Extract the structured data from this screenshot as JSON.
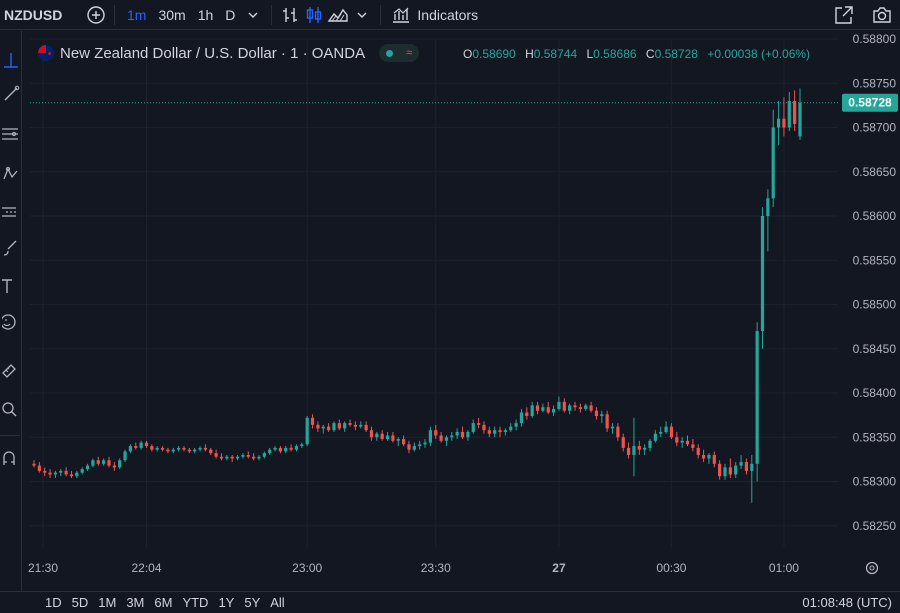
{
  "toolbar": {
    "symbol": "NZDUSD",
    "intervals": [
      "1m",
      "30m",
      "1h",
      "D"
    ],
    "active_interval": "1m",
    "indicators_label": "Indicators"
  },
  "legend": {
    "title": "New Zealand Dollar / U.S. Dollar · 1 · OANDA",
    "o_label": "O",
    "o": "0.58690",
    "h_label": "H",
    "h": "0.58744",
    "l_label": "L",
    "l": "0.58686",
    "c_label": "C",
    "c": "0.58728",
    "change": "+0.00038 (+0.06%)"
  },
  "ranges": [
    "1D",
    "5D",
    "1M",
    "3M",
    "6M",
    "YTD",
    "1Y",
    "5Y",
    "All"
  ],
  "clock": "01:08:48 (UTC)",
  "colors": {
    "up": "#26a69a",
    "down": "#ef5350",
    "background": "#131722",
    "grid": "#1e222d"
  },
  "chart_data": {
    "type": "candlestick",
    "x_tick_labels": [
      "21:30",
      "22:04",
      "23:00",
      "23:30",
      "27",
      "00:30",
      "01:00"
    ],
    "y_tick_labels": [
      "0.58800",
      "0.58750",
      "0.58700",
      "0.58650",
      "0.58600",
      "0.58550",
      "0.58500",
      "0.58450",
      "0.58400",
      "0.58350",
      "0.58300",
      "0.58250"
    ],
    "ylim": [
      0.58226,
      0.588
    ],
    "last_price": 0.58728,
    "last_price_label": "0.58728",
    "candles": [
      [
        0.5832,
        0.58324,
        0.58316,
        0.58318
      ],
      [
        0.58318,
        0.58322,
        0.5831,
        0.58312
      ],
      [
        0.58312,
        0.58316,
        0.58306,
        0.5831
      ],
      [
        0.5831,
        0.58314,
        0.58304,
        0.58308
      ],
      [
        0.58308,
        0.58312,
        0.58304,
        0.5831
      ],
      [
        0.5831,
        0.58314,
        0.58306,
        0.58312
      ],
      [
        0.58312,
        0.58316,
        0.58306,
        0.58308
      ],
      [
        0.58308,
        0.58312,
        0.58304,
        0.58306
      ],
      [
        0.58306,
        0.58312,
        0.58304,
        0.5831
      ],
      [
        0.5831,
        0.58316,
        0.58308,
        0.58314
      ],
      [
        0.58314,
        0.5832,
        0.58312,
        0.58318
      ],
      [
        0.58318,
        0.58326,
        0.58316,
        0.58324
      ],
      [
        0.58324,
        0.58328,
        0.58318,
        0.5832
      ],
      [
        0.5832,
        0.58326,
        0.58318,
        0.58324
      ],
      [
        0.58324,
        0.58328,
        0.58316,
        0.58318
      ],
      [
        0.58318,
        0.58322,
        0.58312,
        0.58316
      ],
      [
        0.58316,
        0.58326,
        0.58314,
        0.58324
      ],
      [
        0.58324,
        0.58336,
        0.58322,
        0.58334
      ],
      [
        0.58334,
        0.58342,
        0.58332,
        0.5834
      ],
      [
        0.5834,
        0.58344,
        0.58336,
        0.58338
      ],
      [
        0.58338,
        0.58346,
        0.58336,
        0.58344
      ],
      [
        0.58344,
        0.58346,
        0.58338,
        0.5834
      ],
      [
        0.5834,
        0.58342,
        0.58334,
        0.58336
      ],
      [
        0.58336,
        0.5834,
        0.58334,
        0.58338
      ],
      [
        0.58338,
        0.5834,
        0.58334,
        0.58336
      ],
      [
        0.58336,
        0.58338,
        0.58332,
        0.58334
      ],
      [
        0.58334,
        0.58338,
        0.58332,
        0.58336
      ],
      [
        0.58336,
        0.5834,
        0.58334,
        0.58338
      ],
      [
        0.58338,
        0.5834,
        0.58334,
        0.58336
      ],
      [
        0.58336,
        0.58338,
        0.58332,
        0.58334
      ],
      [
        0.58334,
        0.58338,
        0.58332,
        0.58336
      ],
      [
        0.58336,
        0.5834,
        0.58334,
        0.58338
      ],
      [
        0.58338,
        0.58342,
        0.58334,
        0.58336
      ],
      [
        0.58336,
        0.58338,
        0.5833,
        0.58332
      ],
      [
        0.58332,
        0.58336,
        0.58326,
        0.58328
      ],
      [
        0.58328,
        0.58332,
        0.58324,
        0.58326
      ],
      [
        0.58326,
        0.5833,
        0.58324,
        0.58328
      ],
      [
        0.58328,
        0.5833,
        0.58322,
        0.58326
      ],
      [
        0.58326,
        0.5833,
        0.58324,
        0.58328
      ],
      [
        0.58328,
        0.58332,
        0.58326,
        0.5833
      ],
      [
        0.5833,
        0.58334,
        0.58326,
        0.58328
      ],
      [
        0.58328,
        0.58332,
        0.58324,
        0.58326
      ],
      [
        0.58326,
        0.5833,
        0.58324,
        0.58328
      ],
      [
        0.58328,
        0.58334,
        0.58326,
        0.58332
      ],
      [
        0.58332,
        0.58338,
        0.5833,
        0.58336
      ],
      [
        0.58336,
        0.5834,
        0.58334,
        0.58338
      ],
      [
        0.58338,
        0.5834,
        0.58332,
        0.58334
      ],
      [
        0.58334,
        0.5834,
        0.58332,
        0.58338
      ],
      [
        0.58338,
        0.58342,
        0.58334,
        0.58336
      ],
      [
        0.58336,
        0.58342,
        0.58334,
        0.5834
      ],
      [
        0.5834,
        0.58344,
        0.58338,
        0.58342
      ],
      [
        0.58342,
        0.58374,
        0.5834,
        0.58372
      ],
      [
        0.58372,
        0.58376,
        0.5836,
        0.58364
      ],
      [
        0.58364,
        0.58368,
        0.58356,
        0.5836
      ],
      [
        0.5836,
        0.58364,
        0.58354,
        0.58362
      ],
      [
        0.58362,
        0.58366,
        0.58356,
        0.58358
      ],
      [
        0.58358,
        0.58368,
        0.58356,
        0.58366
      ],
      [
        0.58366,
        0.5837,
        0.58358,
        0.5836
      ],
      [
        0.5836,
        0.58368,
        0.58356,
        0.58366
      ],
      [
        0.58366,
        0.5837,
        0.58362,
        0.58364
      ],
      [
        0.58364,
        0.58368,
        0.58358,
        0.58362
      ],
      [
        0.58362,
        0.58368,
        0.5836,
        0.58364
      ],
      [
        0.58364,
        0.58368,
        0.58356,
        0.58358
      ],
      [
        0.58358,
        0.58362,
        0.58346,
        0.5835
      ],
      [
        0.5835,
        0.58356,
        0.58346,
        0.58354
      ],
      [
        0.58354,
        0.58358,
        0.58346,
        0.58348
      ],
      [
        0.58348,
        0.58356,
        0.58346,
        0.58352
      ],
      [
        0.58352,
        0.58356,
        0.58344,
        0.58346
      ],
      [
        0.58346,
        0.5835,
        0.5834,
        0.58348
      ],
      [
        0.58348,
        0.58352,
        0.5834,
        0.58342
      ],
      [
        0.58342,
        0.58346,
        0.58332,
        0.58336
      ],
      [
        0.58336,
        0.58344,
        0.58334,
        0.5834
      ],
      [
        0.5834,
        0.58346,
        0.58336,
        0.58342
      ],
      [
        0.58342,
        0.58348,
        0.58338,
        0.58344
      ],
      [
        0.58344,
        0.58362,
        0.5834,
        0.58358
      ],
      [
        0.58358,
        0.58364,
        0.58348,
        0.58352
      ],
      [
        0.58352,
        0.58356,
        0.58344,
        0.58346
      ],
      [
        0.58346,
        0.58352,
        0.5834,
        0.5835
      ],
      [
        0.5835,
        0.58356,
        0.58346,
        0.58352
      ],
      [
        0.58352,
        0.5836,
        0.58348,
        0.58356
      ],
      [
        0.58356,
        0.58362,
        0.58348,
        0.5835
      ],
      [
        0.5835,
        0.58358,
        0.58346,
        0.58356
      ],
      [
        0.58356,
        0.5837,
        0.58354,
        0.58366
      ],
      [
        0.58366,
        0.58372,
        0.5836,
        0.58364
      ],
      [
        0.58364,
        0.58368,
        0.58354,
        0.58358
      ],
      [
        0.58358,
        0.58362,
        0.5835,
        0.58354
      ],
      [
        0.58354,
        0.58362,
        0.5835,
        0.58358
      ],
      [
        0.58358,
        0.58362,
        0.5835,
        0.58356
      ],
      [
        0.58356,
        0.5836,
        0.58352,
        0.58358
      ],
      [
        0.58358,
        0.58366,
        0.58356,
        0.58362
      ],
      [
        0.58362,
        0.5837,
        0.58358,
        0.58366
      ],
      [
        0.58366,
        0.58382,
        0.58362,
        0.58378
      ],
      [
        0.58378,
        0.58384,
        0.5837,
        0.58374
      ],
      [
        0.58374,
        0.5839,
        0.58372,
        0.58386
      ],
      [
        0.58386,
        0.5839,
        0.58376,
        0.5838
      ],
      [
        0.5838,
        0.58388,
        0.58378,
        0.58384
      ],
      [
        0.58384,
        0.5839,
        0.58376,
        0.58378
      ],
      [
        0.58378,
        0.58386,
        0.58374,
        0.58382
      ],
      [
        0.58382,
        0.58396,
        0.5838,
        0.5839
      ],
      [
        0.5839,
        0.58394,
        0.58378,
        0.5838
      ],
      [
        0.5838,
        0.58388,
        0.58376,
        0.58386
      ],
      [
        0.58386,
        0.5839,
        0.5838,
        0.58384
      ],
      [
        0.58384,
        0.58388,
        0.58378,
        0.58382
      ],
      [
        0.58382,
        0.58388,
        0.5838,
        0.58386
      ],
      [
        0.58386,
        0.5839,
        0.58378,
        0.5838
      ],
      [
        0.5838,
        0.58384,
        0.5837,
        0.58374
      ],
      [
        0.58374,
        0.5838,
        0.58366,
        0.58376
      ],
      [
        0.58376,
        0.5838,
        0.58356,
        0.5836
      ],
      [
        0.5836,
        0.58366,
        0.58354,
        0.58362
      ],
      [
        0.58362,
        0.58366,
        0.58346,
        0.5835
      ],
      [
        0.5835,
        0.58354,
        0.58334,
        0.58338
      ],
      [
        0.58338,
        0.58344,
        0.58326,
        0.5833
      ],
      [
        0.5833,
        0.58372,
        0.58306,
        0.5834
      ],
      [
        0.5834,
        0.58346,
        0.5833,
        0.58336
      ],
      [
        0.58336,
        0.58342,
        0.5833,
        0.58338
      ],
      [
        0.58338,
        0.58348,
        0.58334,
        0.58346
      ],
      [
        0.58346,
        0.58358,
        0.58344,
        0.58354
      ],
      [
        0.58354,
        0.58362,
        0.5835,
        0.58356
      ],
      [
        0.58356,
        0.58368,
        0.58354,
        0.58362
      ],
      [
        0.58362,
        0.58366,
        0.58348,
        0.5835
      ],
      [
        0.5835,
        0.58356,
        0.5834,
        0.58344
      ],
      [
        0.58344,
        0.5835,
        0.58338,
        0.58346
      ],
      [
        0.58346,
        0.58352,
        0.5834,
        0.58342
      ],
      [
        0.58342,
        0.58348,
        0.58334,
        0.58338
      ],
      [
        0.58338,
        0.58342,
        0.58326,
        0.5833
      ],
      [
        0.5833,
        0.58336,
        0.58322,
        0.58326
      ],
      [
        0.58326,
        0.58332,
        0.5832,
        0.5833
      ],
      [
        0.5833,
        0.58334,
        0.58316,
        0.5832
      ],
      [
        0.5832,
        0.58324,
        0.58302,
        0.58306
      ],
      [
        0.58306,
        0.5832,
        0.58302,
        0.58316
      ],
      [
        0.58316,
        0.58326,
        0.58304,
        0.58308
      ],
      [
        0.58308,
        0.58322,
        0.58304,
        0.58318
      ],
      [
        0.58318,
        0.5833,
        0.58314,
        0.58322
      ],
      [
        0.58322,
        0.58326,
        0.58308,
        0.58312
      ],
      [
        0.58312,
        0.5833,
        0.58276,
        0.5832
      ],
      [
        0.5832,
        0.5848,
        0.583,
        0.5847
      ],
      [
        0.5847,
        0.5861,
        0.5845,
        0.586
      ],
      [
        0.586,
        0.5863,
        0.5856,
        0.5862
      ],
      [
        0.5862,
        0.5872,
        0.5861,
        0.587
      ],
      [
        0.587,
        0.5873,
        0.5868,
        0.5871
      ],
      [
        0.5871,
        0.58734,
        0.5869,
        0.587
      ],
      [
        0.587,
        0.5874,
        0.58696,
        0.5873
      ],
      [
        0.5873,
        0.58742,
        0.58696,
        0.58704
      ],
      [
        0.5869,
        0.58744,
        0.58686,
        0.58728
      ]
    ]
  }
}
